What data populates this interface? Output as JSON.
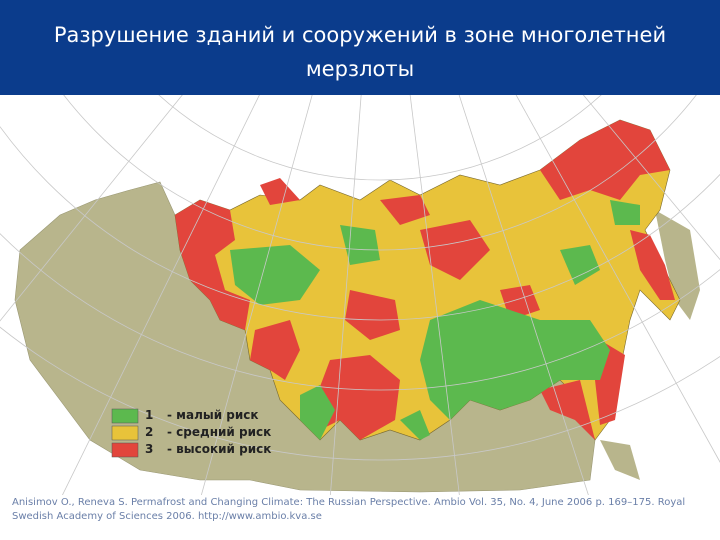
{
  "header": {
    "title": "Разрушение зданий и сооружений в зоне многолетней мерзлоты"
  },
  "legend": [
    {
      "number": "1",
      "label": "- малый риск"
    },
    {
      "number": "2",
      "label": "- средний риск"
    },
    {
      "number": "3",
      "label": "- высокий риск"
    }
  ],
  "citation": "Anisimov O., Reneva S. Permafrost and Changing Climate: The Russian Perspective. Ambio Vol. 35, No. 4, June 2006 p. 169–175. Royal Swedish Academy of Sciences 2006. http://www.ambio.kva.se"
}
